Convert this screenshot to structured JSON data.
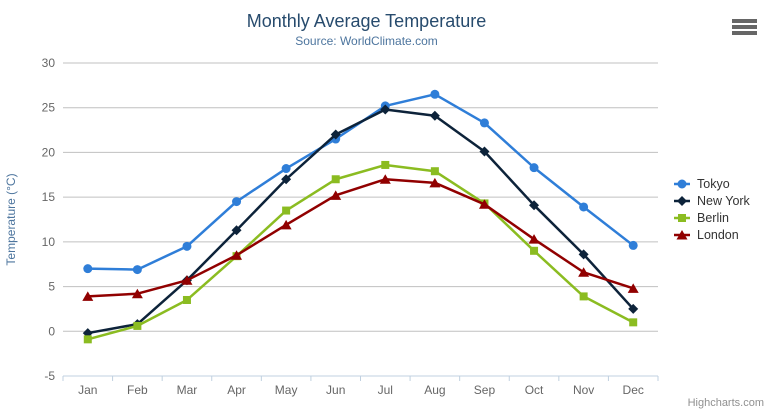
{
  "chart_data": {
    "type": "line",
    "title": "Monthly Average Temperature",
    "subtitle": "Source: WorldClimate.com",
    "categories": [
      "Jan",
      "Feb",
      "Mar",
      "Apr",
      "May",
      "Jun",
      "Jul",
      "Aug",
      "Sep",
      "Oct",
      "Nov",
      "Dec"
    ],
    "xlabel": "",
    "ylabel": "Temperature (°C)",
    "ylim": [
      -5,
      30
    ],
    "ytick_step": 5,
    "grid": true,
    "legend_position": "right",
    "series": [
      {
        "name": "Tokyo",
        "color": "#2f7ed8",
        "marker": "circle",
        "values": [
          7.0,
          6.9,
          9.5,
          14.5,
          18.2,
          21.5,
          25.2,
          26.5,
          23.3,
          18.3,
          13.9,
          9.6
        ]
      },
      {
        "name": "New York",
        "color": "#0d233a",
        "marker": "diamond",
        "values": [
          -0.2,
          0.8,
          5.7,
          11.3,
          17.0,
          22.0,
          24.8,
          24.1,
          20.1,
          14.1,
          8.6,
          2.5
        ]
      },
      {
        "name": "Berlin",
        "color": "#8bbc21",
        "marker": "square",
        "values": [
          -0.9,
          0.6,
          3.5,
          8.4,
          13.5,
          17.0,
          18.6,
          17.9,
          14.3,
          9.0,
          3.9,
          1.0
        ]
      },
      {
        "name": "London",
        "color": "#910000",
        "marker": "triangle",
        "values": [
          3.9,
          4.2,
          5.7,
          8.5,
          11.9,
          15.2,
          17.0,
          16.6,
          14.2,
          10.3,
          6.6,
          4.8
        ]
      }
    ]
  },
  "theme": {
    "title_color": "#274b6d",
    "subtitle_color": "#4d759e",
    "axis_title_color": "#4d759e",
    "axis_label_color": "#666666",
    "grid_color": "#c0c0c0",
    "axis_line_color": "#c0d0e0",
    "legend_text_color": "#333333",
    "credit_color": "#909090",
    "menu_icon_color": "#666666"
  },
  "icons": {
    "context_menu": "hamburger-menu-icon"
  },
  "credits": {
    "label": "Highcharts.com"
  }
}
